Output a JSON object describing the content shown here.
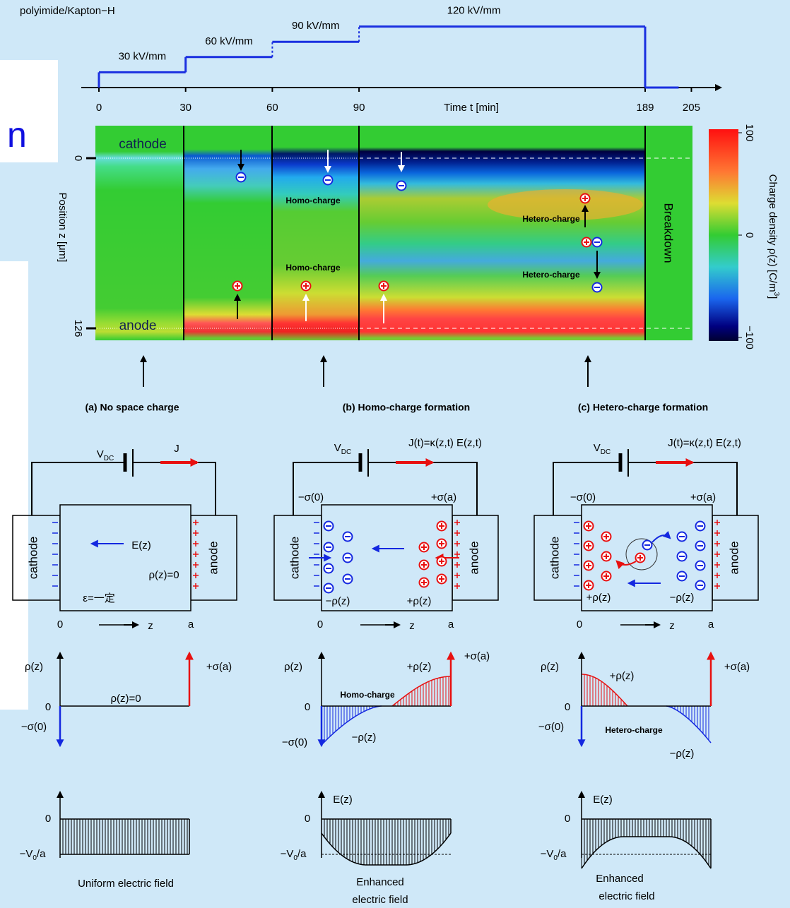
{
  "fragment": "n",
  "title": "polyimide/Kapton−H",
  "voltage_steps": [
    {
      "label": "30 kV/mm",
      "field": 30
    },
    {
      "label": "60 kV/mm",
      "field": 60
    },
    {
      "label": "90 kV/mm",
      "field": 90
    },
    {
      "label": "120 kV/mm",
      "field": 120
    }
  ],
  "time_axis": {
    "ticks": [
      0,
      30,
      60,
      90,
      189,
      205
    ],
    "label": "Time t [min]"
  },
  "heatmap": {
    "cathode": "cathode",
    "anode": "anode",
    "position_ticks": [
      0,
      126
    ],
    "position_label": "Position z [μm]",
    "breakdown": "Breakdown",
    "homo_labels": [
      "Homo-charge",
      "Homo-charge"
    ],
    "hetero_labels": [
      "Hetero-charge",
      "Hetero-charge"
    ],
    "colorbar": {
      "ticks": [
        100,
        0,
        {
          "value": -100,
          "label": "−100"
        }
      ],
      "label": {
        "main": "Charge density ρ(z) [C/m",
        "sup": "3",
        "rest": "]"
      }
    }
  },
  "panels": [
    {
      "caption": "(a) No space charge",
      "circuit": {
        "source": {
          "main": "V",
          "sub": "DC"
        },
        "current": "J",
        "cathode": "cathode",
        "anode": "anode",
        "field": "E(z)",
        "density": "ρ(z)=0",
        "permittivity": "ε=一定",
        "origin": "0",
        "axis": "z",
        "end": "a"
      },
      "density_plot": {
        "y_label": "ρ(z)",
        "zero": "0",
        "neg_surface": "−σ(0)",
        "pos_surface": "+σ(a)",
        "curve_label": "ρ(z)=0"
      },
      "field_plot": {
        "zero": "0",
        "level": {
          "main": "−V",
          "sub": "0",
          "rest": "/a"
        },
        "caption": [
          "Uniform electric field"
        ]
      }
    },
    {
      "caption": "(b) Homo-charge formation",
      "circuit": {
        "source": {
          "main": "V",
          "sub": "DC"
        },
        "current": "J(t)=κ(z,t) E(z,t)",
        "neg_surface": "−σ(0)",
        "pos_surface": "+σ(a)",
        "cathode": "cathode",
        "anode": "anode",
        "neg_density": "−ρ(z)",
        "pos_density": "+ρ(z)",
        "origin": "0",
        "axis": "z",
        "end": "a"
      },
      "density_plot": {
        "y_label": "ρ(z)",
        "zero": "0",
        "neg_surface": "−σ(0)",
        "pos_surface": "+σ(a)",
        "charge": "Homo-charge",
        "pos_density": "+ρ(z)",
        "neg_density": "−ρ(z)"
      },
      "field_plot": {
        "y_label": "E(z)",
        "zero": "0",
        "level": {
          "main": "−V",
          "sub": "0",
          "rest": "/a"
        },
        "caption": [
          "Enhanced",
          "electric field"
        ]
      }
    },
    {
      "caption": "(c) Hetero-charge formation",
      "circuit": {
        "source": {
          "main": "V",
          "sub": "DC"
        },
        "current": "J(t)=κ(z,t) E(z,t)",
        "neg_surface": "−σ(0)",
        "pos_surface": "+σ(a)",
        "cathode": "cathode",
        "anode": "anode",
        "pos_density": "+ρ(z)",
        "neg_density": "−ρ(z)",
        "origin": "0",
        "axis": "z",
        "end": "a"
      },
      "density_plot": {
        "y_label": "ρ(z)",
        "zero": "0",
        "neg_surface": "−σ(0)",
        "pos_surface": "+σ(a)",
        "charge": "Hetero-charge",
        "pos_density": "+ρ(z)",
        "neg_density": "−ρ(z)"
      },
      "field_plot": {
        "y_label": "E(z)",
        "zero": "0",
        "level": {
          "main": "−V",
          "sub": "0",
          "rest": "/a"
        },
        "caption": [
          "Enhanced",
          "electric field"
        ]
      }
    }
  ]
}
